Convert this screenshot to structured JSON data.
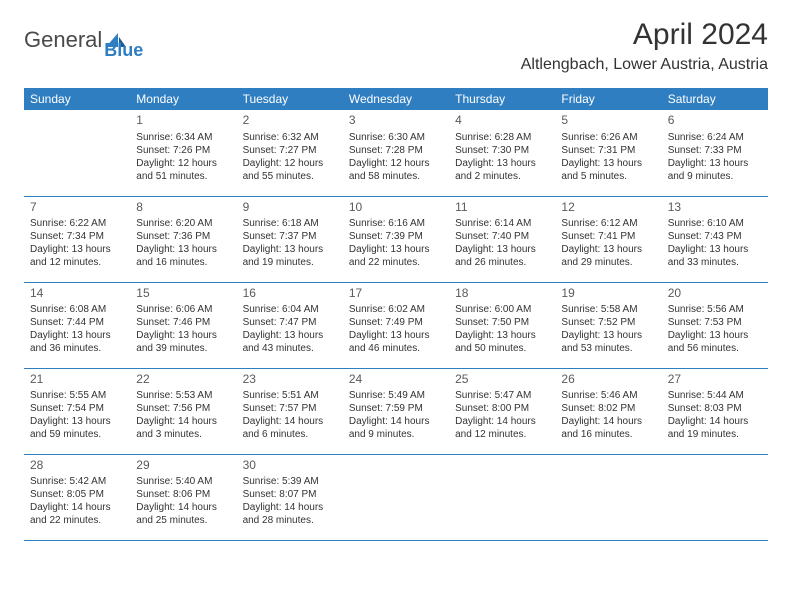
{
  "brand": {
    "part1": "General",
    "part2": "Blue"
  },
  "title": "April 2024",
  "location": "Altlengbach, Lower Austria, Austria",
  "colors": {
    "accent": "#2f7ec2",
    "text": "#333333",
    "bg": "#ffffff"
  },
  "weekdays": [
    "Sunday",
    "Monday",
    "Tuesday",
    "Wednesday",
    "Thursday",
    "Friday",
    "Saturday"
  ],
  "startOffset": 1,
  "days": [
    {
      "n": 1,
      "sr": "6:34 AM",
      "ss": "7:26 PM",
      "dl": "12 hours and 51 minutes."
    },
    {
      "n": 2,
      "sr": "6:32 AM",
      "ss": "7:27 PM",
      "dl": "12 hours and 55 minutes."
    },
    {
      "n": 3,
      "sr": "6:30 AM",
      "ss": "7:28 PM",
      "dl": "12 hours and 58 minutes."
    },
    {
      "n": 4,
      "sr": "6:28 AM",
      "ss": "7:30 PM",
      "dl": "13 hours and 2 minutes."
    },
    {
      "n": 5,
      "sr": "6:26 AM",
      "ss": "7:31 PM",
      "dl": "13 hours and 5 minutes."
    },
    {
      "n": 6,
      "sr": "6:24 AM",
      "ss": "7:33 PM",
      "dl": "13 hours and 9 minutes."
    },
    {
      "n": 7,
      "sr": "6:22 AM",
      "ss": "7:34 PM",
      "dl": "13 hours and 12 minutes."
    },
    {
      "n": 8,
      "sr": "6:20 AM",
      "ss": "7:36 PM",
      "dl": "13 hours and 16 minutes."
    },
    {
      "n": 9,
      "sr": "6:18 AM",
      "ss": "7:37 PM",
      "dl": "13 hours and 19 minutes."
    },
    {
      "n": 10,
      "sr": "6:16 AM",
      "ss": "7:39 PM",
      "dl": "13 hours and 22 minutes."
    },
    {
      "n": 11,
      "sr": "6:14 AM",
      "ss": "7:40 PM",
      "dl": "13 hours and 26 minutes."
    },
    {
      "n": 12,
      "sr": "6:12 AM",
      "ss": "7:41 PM",
      "dl": "13 hours and 29 minutes."
    },
    {
      "n": 13,
      "sr": "6:10 AM",
      "ss": "7:43 PM",
      "dl": "13 hours and 33 minutes."
    },
    {
      "n": 14,
      "sr": "6:08 AM",
      "ss": "7:44 PM",
      "dl": "13 hours and 36 minutes."
    },
    {
      "n": 15,
      "sr": "6:06 AM",
      "ss": "7:46 PM",
      "dl": "13 hours and 39 minutes."
    },
    {
      "n": 16,
      "sr": "6:04 AM",
      "ss": "7:47 PM",
      "dl": "13 hours and 43 minutes."
    },
    {
      "n": 17,
      "sr": "6:02 AM",
      "ss": "7:49 PM",
      "dl": "13 hours and 46 minutes."
    },
    {
      "n": 18,
      "sr": "6:00 AM",
      "ss": "7:50 PM",
      "dl": "13 hours and 50 minutes."
    },
    {
      "n": 19,
      "sr": "5:58 AM",
      "ss": "7:52 PM",
      "dl": "13 hours and 53 minutes."
    },
    {
      "n": 20,
      "sr": "5:56 AM",
      "ss": "7:53 PM",
      "dl": "13 hours and 56 minutes."
    },
    {
      "n": 21,
      "sr": "5:55 AM",
      "ss": "7:54 PM",
      "dl": "13 hours and 59 minutes."
    },
    {
      "n": 22,
      "sr": "5:53 AM",
      "ss": "7:56 PM",
      "dl": "14 hours and 3 minutes."
    },
    {
      "n": 23,
      "sr": "5:51 AM",
      "ss": "7:57 PM",
      "dl": "14 hours and 6 minutes."
    },
    {
      "n": 24,
      "sr": "5:49 AM",
      "ss": "7:59 PM",
      "dl": "14 hours and 9 minutes."
    },
    {
      "n": 25,
      "sr": "5:47 AM",
      "ss": "8:00 PM",
      "dl": "14 hours and 12 minutes."
    },
    {
      "n": 26,
      "sr": "5:46 AM",
      "ss": "8:02 PM",
      "dl": "14 hours and 16 minutes."
    },
    {
      "n": 27,
      "sr": "5:44 AM",
      "ss": "8:03 PM",
      "dl": "14 hours and 19 minutes."
    },
    {
      "n": 28,
      "sr": "5:42 AM",
      "ss": "8:05 PM",
      "dl": "14 hours and 22 minutes."
    },
    {
      "n": 29,
      "sr": "5:40 AM",
      "ss": "8:06 PM",
      "dl": "14 hours and 25 minutes."
    },
    {
      "n": 30,
      "sr": "5:39 AM",
      "ss": "8:07 PM",
      "dl": "14 hours and 28 minutes."
    }
  ],
  "labels": {
    "sunrise": "Sunrise:",
    "sunset": "Sunset:",
    "daylight": "Daylight:"
  }
}
